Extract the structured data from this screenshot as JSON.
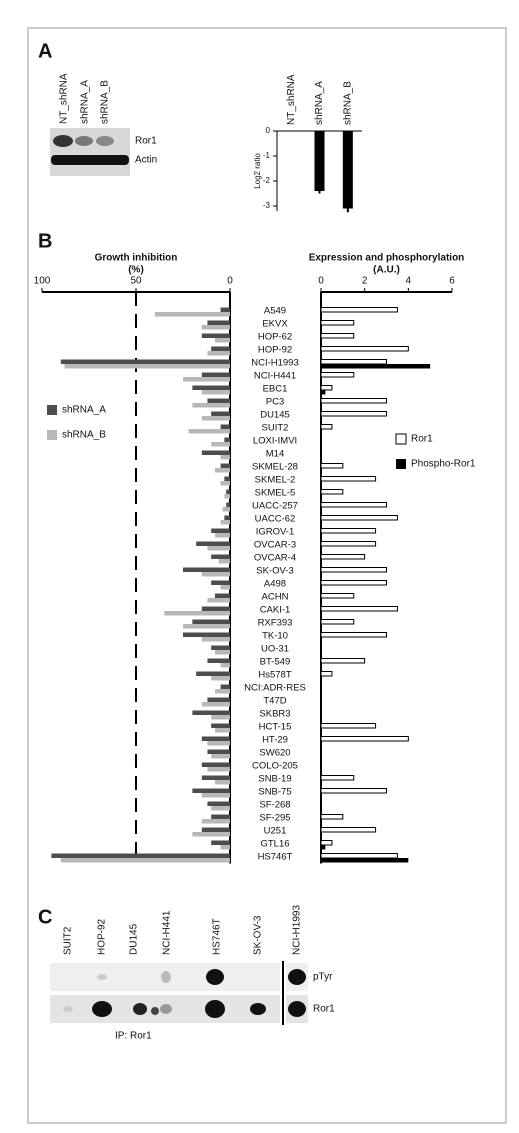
{
  "panel_labels": [
    "A",
    "B",
    "C"
  ],
  "blot_a": {
    "lanes": [
      "NT_shRNA",
      "shRNA_A",
      "shRNA_B"
    ],
    "rows": [
      "Ror1",
      "Actin"
    ]
  },
  "blot_c": {
    "lanes": [
      "SUIT2",
      "HOP-92",
      "DU145",
      "NCI-H441",
      "HS746T",
      "SK-OV-3",
      "NCI-H1993"
    ],
    "rows": [
      "pTyr",
      "Ror1"
    ],
    "caption": "IP: Ror1"
  },
  "chart_data": [
    {
      "type": "bar",
      "ylabel": "Log2 ratio",
      "categories": [
        "NT_shRNA",
        "shRNA_A",
        "shRNA_B"
      ],
      "values": [
        0,
        -2.4,
        -3.1
      ],
      "errors": [
        0,
        0.1,
        0.15
      ],
      "color": "#000000",
      "ylim": [
        -3.2,
        0
      ],
      "yticks": [
        0,
        -1,
        -2,
        -3
      ]
    },
    {
      "type": "butterfly",
      "categories": [
        "A549",
        "EKVX",
        "HOP-62",
        "HOP-92",
        "NCI-H1993",
        "NCI-H441",
        "EBC1",
        "PC3",
        "DU145",
        "SUIT2",
        "LOXI-IMVI",
        "M14",
        "SKMEL-28",
        "SKMEL-2",
        "SKMEL-5",
        "UACC-257",
        "UACC-62",
        "IGROV-1",
        "OVCAR-3",
        "OVCAR-4",
        "SK-OV-3",
        "A498",
        "ACHN",
        "CAKI-1",
        "RXF393",
        "TK-10",
        "UO-31",
        "BT-549",
        "Hs578T",
        "NCI:ADR-RES",
        "T47D",
        "SKBR3",
        "HCT-15",
        "HT-29",
        "SW620",
        "COLO-205",
        "SNB-19",
        "SNB-75",
        "SF-268",
        "SF-295",
        "U251",
        "GTL16",
        "HS746T"
      ],
      "left": {
        "title": "Growth inhibition",
        "unit_label": "(%)",
        "xlim": [
          100,
          0
        ],
        "xticks": [
          100,
          50,
          0
        ],
        "reference_line": 50,
        "legend": "left",
        "series": [
          {
            "name": "shRNA_A",
            "color": "#4d4d4d",
            "values": [
              5,
              12,
              15,
              10,
              90,
              15,
              20,
              12,
              10,
              5,
              3,
              15,
              5,
              3,
              2,
              2,
              3,
              10,
              18,
              10,
              25,
              10,
              8,
              15,
              20,
              25,
              10,
              12,
              18,
              5,
              12,
              20,
              10,
              15,
              12,
              15,
              15,
              20,
              12,
              10,
              15,
              10,
              95
            ]
          },
          {
            "name": "shRNA_B",
            "color": "#b8b8b8",
            "values": [
              40,
              15,
              8,
              12,
              88,
              25,
              15,
              20,
              15,
              22,
              10,
              5,
              8,
              5,
              3,
              4,
              5,
              8,
              12,
              6,
              15,
              5,
              12,
              35,
              25,
              15,
              8,
              5,
              10,
              8,
              15,
              10,
              8,
              12,
              10,
              12,
              8,
              15,
              10,
              15,
              20,
              5,
              90
            ]
          }
        ]
      },
      "right": {
        "title": "Expression and phosphorylation",
        "unit_label": "(A.U.)",
        "xlim": [
          0,
          6
        ],
        "xticks": [
          0,
          2,
          4,
          6
        ],
        "legend": "right",
        "series": [
          {
            "name": "Ror1",
            "color": "#ffffff",
            "values": [
              3.5,
              1.5,
              1.5,
              4,
              3,
              1.5,
              0.5,
              3,
              3,
              0.5,
              0,
              0,
              1,
              2.5,
              1,
              3,
              3.5,
              2.5,
              2.5,
              2,
              3,
              3,
              1.5,
              3.5,
              1.5,
              3,
              0,
              2,
              0.5,
              0,
              0,
              0,
              2.5,
              4,
              0,
              0,
              1.5,
              3,
              0,
              1,
              2.5,
              0.5,
              3.5
            ]
          },
          {
            "name": "Phospho-Ror1",
            "color": "#000000",
            "values": [
              0,
              0,
              0,
              0,
              5,
              0,
              0.2,
              0,
              0,
              0,
              0,
              0,
              0,
              0,
              0,
              0,
              0,
              0,
              0,
              0,
              0,
              0,
              0,
              0,
              0,
              0,
              0,
              0,
              0,
              0,
              0,
              0,
              0,
              0,
              0,
              0,
              0,
              0,
              0,
              0,
              0,
              0.2,
              4
            ]
          }
        ]
      }
    }
  ]
}
